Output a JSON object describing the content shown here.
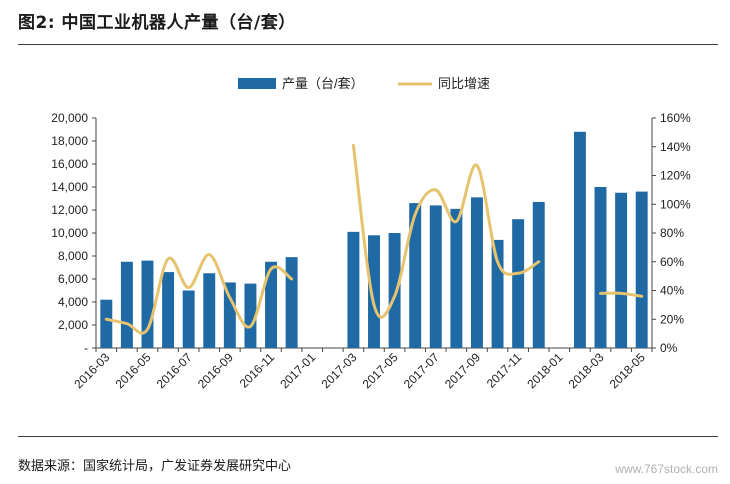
{
  "title": "图2:  中国工业机器人产量（台/套）",
  "source": "数据来源：国家统计局，广发证券发展研究中心",
  "watermark": "www.767stock.com",
  "colors": {
    "bar": "#1f6aa5",
    "line": "#e6c36e",
    "axis": "#444444",
    "text": "#222222"
  },
  "chart_data": {
    "type": "bar",
    "categories": [
      "2016-03",
      "2016-04",
      "2016-05",
      "2016-06",
      "2016-07",
      "2016-08",
      "2016-09",
      "2016-10",
      "2016-11",
      "2016-12",
      "2017-01",
      "2017-02",
      "2017-03",
      "2017-04",
      "2017-05",
      "2017-06",
      "2017-07",
      "2017-08",
      "2017-09",
      "2017-10",
      "2017-11",
      "2017-12",
      "2018-01",
      "2018-02",
      "2018-03",
      "2018-04",
      "2018-05"
    ],
    "x_tick_labels": [
      "2016-03",
      "2016-05",
      "2016-07",
      "2016-09",
      "2016-11",
      "2017-01",
      "2017-03",
      "2017-05",
      "2017-07",
      "2017-09",
      "2017-11",
      "2018-01",
      "2018-03",
      "2018-05"
    ],
    "series": [
      {
        "name": "产量（台/套）",
        "type": "bar",
        "axis": "left",
        "values": [
          4200,
          7500,
          7600,
          6600,
          5000,
          6500,
          5700,
          5600,
          7500,
          7900,
          null,
          null,
          10100,
          9800,
          10000,
          12600,
          12400,
          12100,
          13100,
          9400,
          11200,
          12700,
          null,
          18800,
          14000,
          13500,
          13600
        ]
      },
      {
        "name": "同比增速",
        "type": "line",
        "axis": "right",
        "unit": "%",
        "values": [
          20,
          17,
          13,
          62,
          42,
          65,
          35,
          15,
          55,
          48,
          null,
          null,
          141,
          30,
          36,
          93,
          110,
          88,
          127,
          60,
          52,
          60,
          null,
          null,
          38,
          38,
          36
        ]
      }
    ],
    "left_axis": {
      "min": 0,
      "max": 20000,
      "ticks": [
        "-",
        "2,000",
        "4,000",
        "6,000",
        "8,000",
        "10,000",
        "12,000",
        "14,000",
        "16,000",
        "18,000",
        "20,000"
      ]
    },
    "right_axis": {
      "min": 0,
      "max": 160,
      "ticks": [
        "0%",
        "20%",
        "40%",
        "60%",
        "80%",
        "100%",
        "120%",
        "140%",
        "160%"
      ]
    },
    "legend_position": "top-center",
    "grid": false
  }
}
